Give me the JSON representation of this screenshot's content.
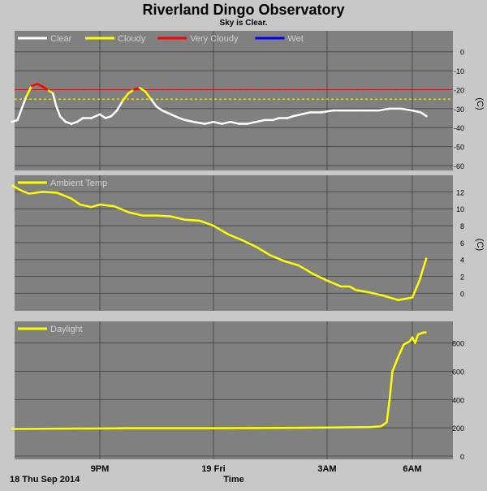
{
  "title": "Riverland Dingo Observatory",
  "subtitle": "Sky is Clear.",
  "date_label": "18 Thu Sep 2014",
  "time_label": "Time",
  "x_ticks": [
    "9PM",
    "19 Fri",
    "3AM",
    "6AM"
  ],
  "colors": {
    "background": "#c8c8c8",
    "panel": "#808080",
    "grid": "#4d4d4d",
    "clear": "#ffffff",
    "cloudy": "#ffff00",
    "very_cloudy": "#ff0000",
    "wet": "#0000ff",
    "threshold_red": "#ff0000",
    "threshold_yellow": "#ffff00"
  },
  "chart_data": [
    {
      "type": "line",
      "panel": "sky",
      "ylabel": "(C)",
      "ylim": [
        -60,
        5
      ],
      "yticks": [
        "0",
        "-10",
        "-20",
        "-30",
        "-40",
        "-50",
        "-60"
      ],
      "x_unit": "hours since 6PM",
      "thresholds": [
        -20,
        -25
      ],
      "legend": [
        "Clear",
        "Cloudy",
        "Very Cloudy",
        "Wet"
      ],
      "series": [
        {
          "name": "Sky Temp",
          "points": [
            [
              -0.1,
              -37
            ],
            [
              0.1,
              -36
            ],
            [
              0.25,
              -30
            ],
            [
              0.4,
              -24
            ],
            [
              0.6,
              -18
            ],
            [
              0.8,
              -17
            ],
            [
              1.0,
              -18.5
            ],
            [
              1.2,
              -20.5
            ],
            [
              1.35,
              -22
            ],
            [
              1.45,
              -28
            ],
            [
              1.6,
              -34
            ],
            [
              1.8,
              -37
            ],
            [
              2.0,
              -38
            ],
            [
              2.2,
              -37
            ],
            [
              2.4,
              -35
            ],
            [
              2.7,
              -35
            ],
            [
              3.0,
              -33
            ],
            [
              3.2,
              -35
            ],
            [
              3.4,
              -34
            ],
            [
              3.6,
              -31
            ],
            [
              3.8,
              -26
            ],
            [
              4.0,
              -22
            ],
            [
              4.2,
              -20
            ],
            [
              4.4,
              -19
            ],
            [
              4.6,
              -21
            ],
            [
              4.8,
              -25
            ],
            [
              5.0,
              -29
            ],
            [
              5.2,
              -31
            ],
            [
              5.5,
              -33
            ],
            [
              5.8,
              -35
            ],
            [
              6.0,
              -36
            ],
            [
              6.3,
              -37
            ],
            [
              6.7,
              -38
            ],
            [
              7.0,
              -37
            ],
            [
              7.3,
              -38
            ],
            [
              7.6,
              -37
            ],
            [
              7.9,
              -38
            ],
            [
              8.2,
              -38
            ],
            [
              8.5,
              -37
            ],
            [
              8.8,
              -36
            ],
            [
              9.1,
              -36
            ],
            [
              9.3,
              -35
            ],
            [
              9.6,
              -35
            ],
            [
              9.8,
              -34
            ],
            [
              10.1,
              -33
            ],
            [
              10.4,
              -32
            ],
            [
              10.8,
              -32
            ],
            [
              11.2,
              -31
            ],
            [
              11.6,
              -31
            ],
            [
              12.0,
              -31
            ],
            [
              12.4,
              -31
            ],
            [
              12.8,
              -31
            ],
            [
              13.2,
              -30
            ],
            [
              13.6,
              -30
            ],
            [
              14.0,
              -31
            ],
            [
              14.3,
              -32
            ],
            [
              14.5,
              -34
            ]
          ]
        }
      ]
    },
    {
      "type": "line",
      "panel": "ambient",
      "ylabel": "(C)",
      "ylim": [
        -1.5,
        13
      ],
      "yticks": [
        "12",
        "10",
        "8",
        "6",
        "4",
        "2",
        "0"
      ],
      "x_unit": "hours since 6PM",
      "legend": [
        "Ambient Temp"
      ],
      "series": [
        {
          "name": "Ambient Temp",
          "points": [
            [
              -0.1,
              12.8
            ],
            [
              0.2,
              12.2
            ],
            [
              0.5,
              11.8
            ],
            [
              1.0,
              12.0
            ],
            [
              1.5,
              11.9
            ],
            [
              2.0,
              11.2
            ],
            [
              2.3,
              10.5
            ],
            [
              2.7,
              10.2
            ],
            [
              3.0,
              10.5
            ],
            [
              3.5,
              10.3
            ],
            [
              4.0,
              9.6
            ],
            [
              4.5,
              9.2
            ],
            [
              5.0,
              9.2
            ],
            [
              5.5,
              9.1
            ],
            [
              6.0,
              8.7
            ],
            [
              6.5,
              8.6
            ],
            [
              7.0,
              8.0
            ],
            [
              7.5,
              7.0
            ],
            [
              8.0,
              6.3
            ],
            [
              8.5,
              5.5
            ],
            [
              9.0,
              4.5
            ],
            [
              9.5,
              3.8
            ],
            [
              10.0,
              3.3
            ],
            [
              10.5,
              2.3
            ],
            [
              11.0,
              1.5
            ],
            [
              11.5,
              0.8
            ],
            [
              11.8,
              0.8
            ],
            [
              12.0,
              0.4
            ],
            [
              12.5,
              0.1
            ],
            [
              13.0,
              -0.3
            ],
            [
              13.5,
              -0.8
            ],
            [
              14.0,
              -0.5
            ],
            [
              14.25,
              1.5
            ],
            [
              14.5,
              4.2
            ]
          ]
        }
      ]
    },
    {
      "type": "line",
      "panel": "daylight",
      "ylim": [
        0,
        930
      ],
      "yticks": [
        "800",
        "600",
        "400",
        "200",
        "0"
      ],
      "x_unit": "hours since 6PM",
      "legend": [
        "Daylight"
      ],
      "series": [
        {
          "name": "Daylight",
          "points": [
            [
              -0.1,
              192
            ],
            [
              2.0,
              195
            ],
            [
              4.0,
              197
            ],
            [
              6.0,
              197
            ],
            [
              8.0,
              198
            ],
            [
              10.0,
              200
            ],
            [
              11.5,
              203
            ],
            [
              12.5,
              205
            ],
            [
              12.9,
              210
            ],
            [
              13.1,
              240
            ],
            [
              13.2,
              400
            ],
            [
              13.3,
              600
            ],
            [
              13.5,
              700
            ],
            [
              13.7,
              790
            ],
            [
              13.9,
              810
            ],
            [
              14.0,
              840
            ],
            [
              14.1,
              800
            ],
            [
              14.2,
              860
            ],
            [
              14.4,
              875
            ],
            [
              14.5,
              875
            ]
          ]
        }
      ]
    }
  ]
}
